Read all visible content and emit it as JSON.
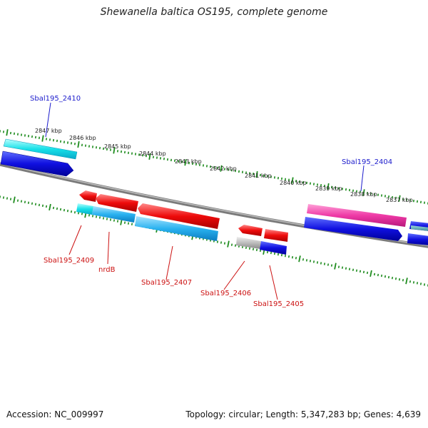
{
  "title": "Shewanella baltica OS195, complete genome",
  "footer": {
    "accession": "Accession: NC_009997",
    "summary": "Topology: circular; Length: 5,347,283 bp; Genes: 4,639"
  },
  "colors": {
    "backbone": "#7a7a7a",
    "ruler": "#1e8c1e",
    "label_top": "#1c1ccc",
    "label_bottom": "#cc1111",
    "kbp_text": "#222222"
  },
  "ruler_labels": [
    "2847 kbp",
    "2846 kbp",
    "2845 kbp",
    "2844 kbp",
    "2843 kbp",
    "2842 kbp",
    "2841 kbp",
    "2840 kbp",
    "2839 kbp",
    "2838 kbp",
    "2837 kbp"
  ],
  "gene_labels": {
    "top": [
      "Sbal195_2410",
      "Sbal195_2404"
    ],
    "bottom": [
      "Sbal195_2409",
      "nrdB",
      "Sbal195_2407",
      "Sbal195_2406",
      "Sbal195_2405"
    ]
  }
}
